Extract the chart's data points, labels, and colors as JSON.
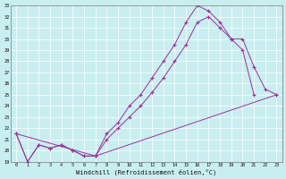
{
  "bg_color": "#c8eef0",
  "line_color": "#993399",
  "xlabel": "Windchill (Refroidissement éolien,°C)",
  "xmin": -0.5,
  "xmax": 23.5,
  "ymin": 19,
  "ymax": 33,
  "curve1_x": [
    0,
    1,
    2,
    3,
    4,
    5,
    6,
    7,
    8,
    9,
    10,
    11,
    12,
    13,
    14,
    15,
    16,
    17,
    18,
    19,
    20,
    21
  ],
  "curve1_y": [
    21.5,
    19.0,
    20.5,
    20.2,
    20.5,
    20.0,
    19.5,
    19.5,
    21.5,
    22.5,
    24.0,
    25.0,
    26.5,
    28.0,
    29.5,
    31.5,
    33.0,
    32.5,
    31.5,
    30.0,
    29.0,
    25.0
  ],
  "curve2_x": [
    0,
    1,
    2,
    3,
    4,
    5,
    6,
    7,
    8,
    9,
    10,
    11,
    12,
    13,
    14,
    15,
    16,
    17,
    18,
    19,
    20,
    21,
    22,
    23
  ],
  "curve2_y": [
    21.5,
    19.0,
    20.5,
    20.2,
    20.5,
    20.0,
    19.5,
    19.5,
    21.0,
    22.0,
    23.0,
    24.0,
    25.2,
    26.5,
    28.0,
    29.5,
    31.5,
    32.0,
    31.0,
    30.0,
    30.0,
    27.5,
    25.5,
    25.0
  ],
  "curve3_x": [
    0,
    7,
    23
  ],
  "curve3_y": [
    21.5,
    19.5,
    25.0
  ],
  "yticks": [
    19,
    20,
    21,
    22,
    23,
    24,
    25,
    26,
    27,
    28,
    29,
    30,
    31,
    32,
    33
  ],
  "xticks": [
    0,
    1,
    2,
    3,
    4,
    5,
    6,
    7,
    8,
    9,
    10,
    11,
    12,
    13,
    14,
    15,
    16,
    17,
    18,
    19,
    20,
    21,
    22,
    23
  ]
}
